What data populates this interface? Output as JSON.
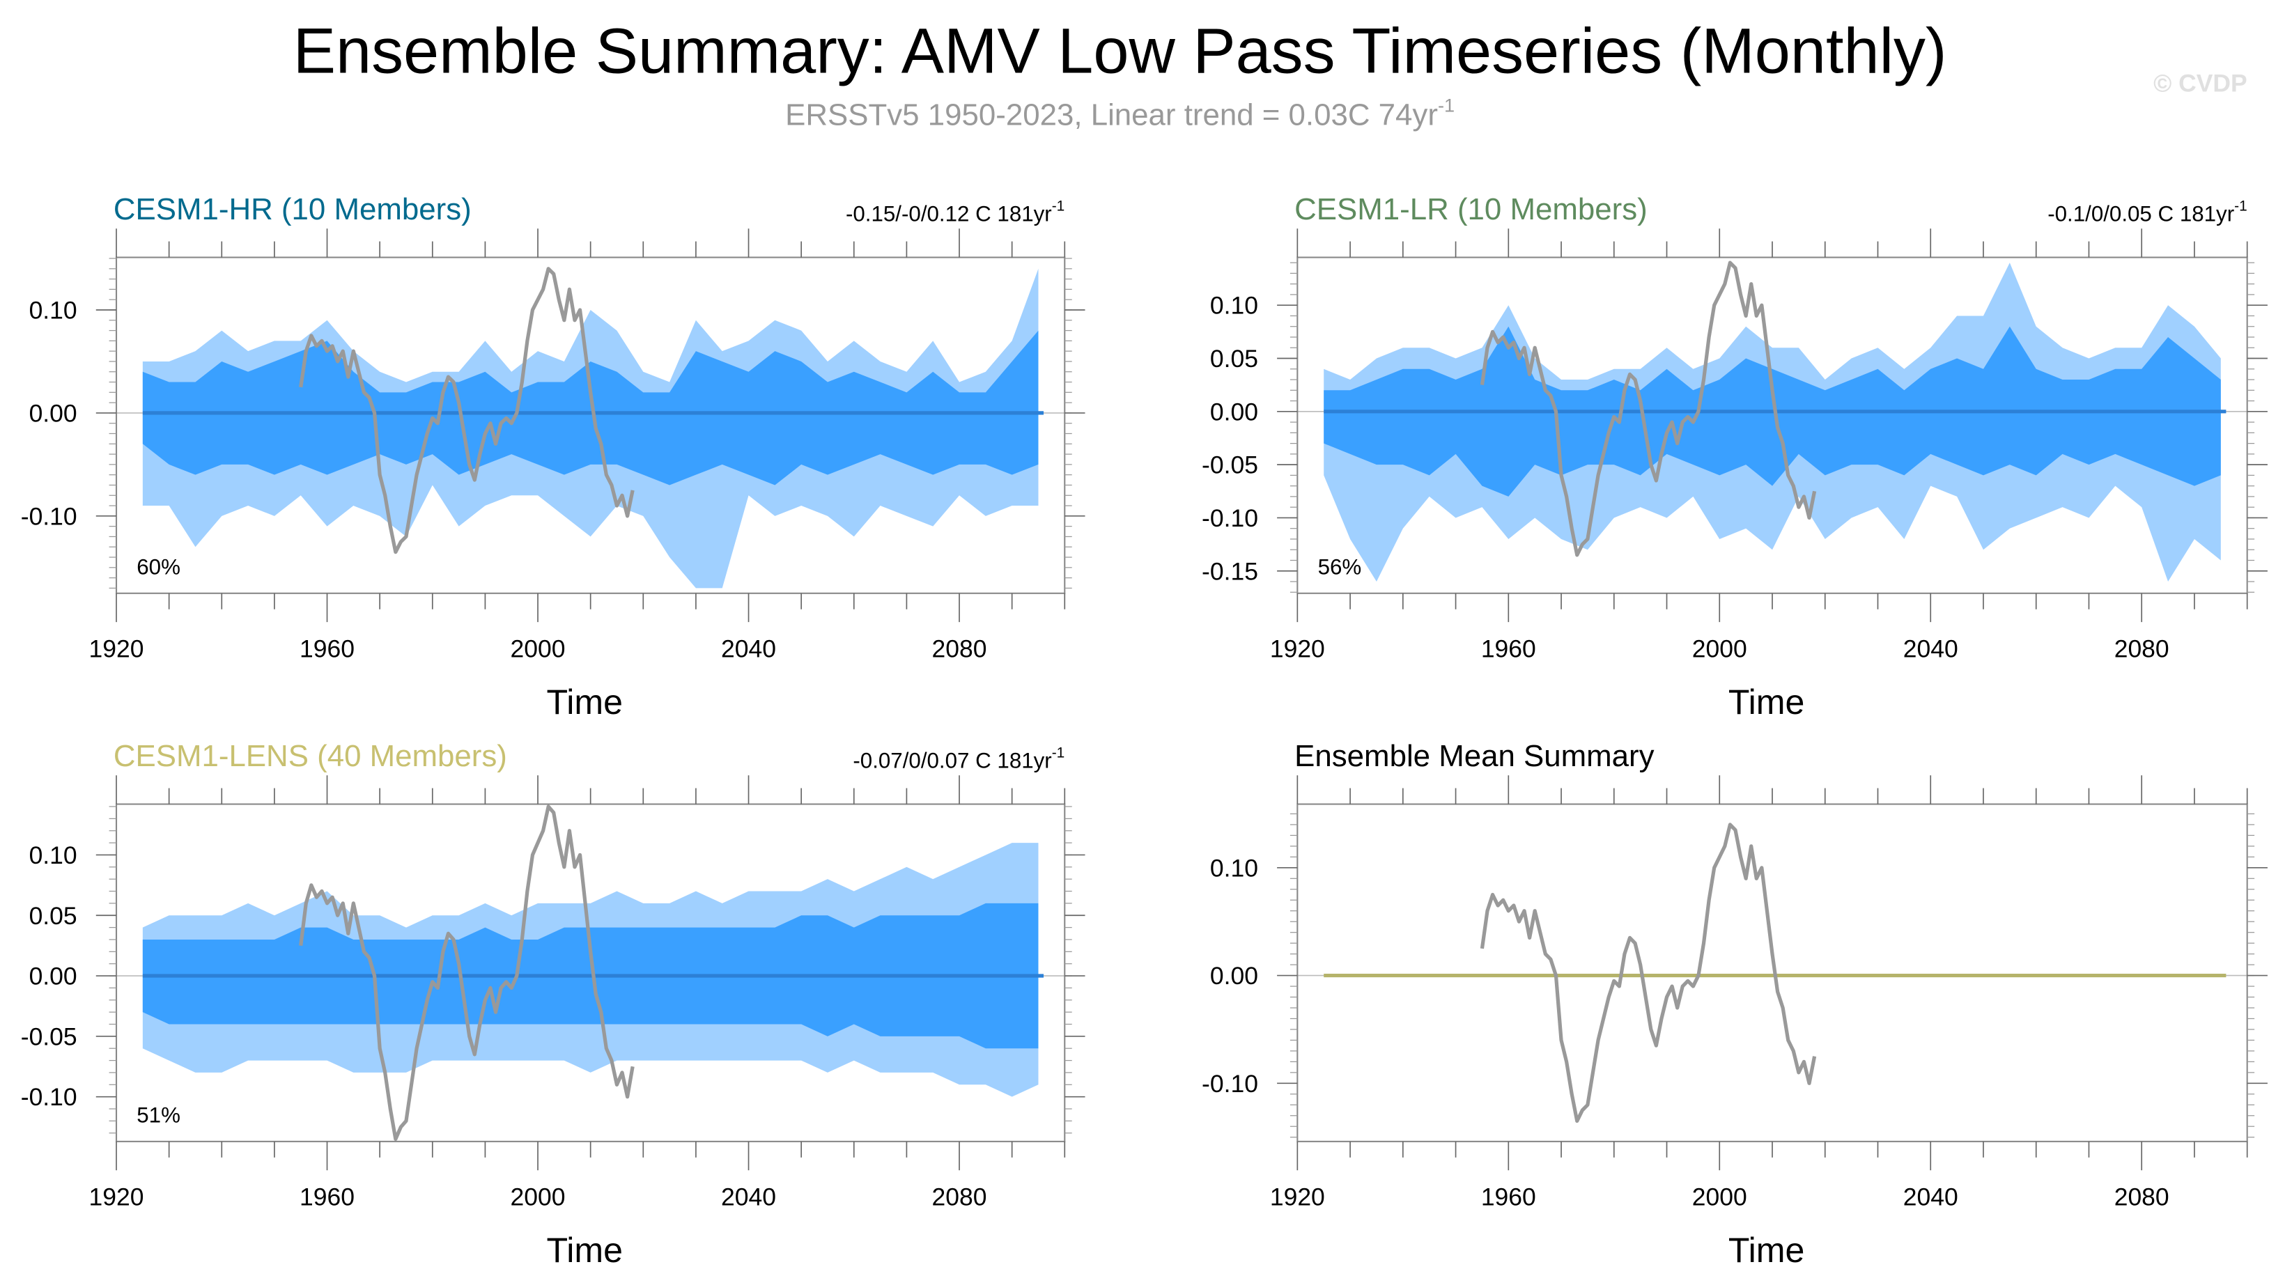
{
  "title": "Ensemble Summary: AMV Low Pass Timeseries (Monthly)",
  "subtitle": "ERSSTv5 1950-2023, Linear trend = 0.03C 74yr",
  "subtitle_sup": "-1",
  "watermark": "© CVDP",
  "colors": {
    "outer_band": "#a0d0ff",
    "inner_band": "#3aa0ff",
    "ensemble_mean": "#2c80d6",
    "observed": "#999999",
    "mean_summary_line": "#b5b36a"
  },
  "chart_data": [
    {
      "type": "area",
      "title": "CESM1-HR (10 Members)",
      "title_color": "#006a8e",
      "stat": "-0.15/-0/0.12 C 181yr",
      "stat_sup": "-1",
      "percent": "60%",
      "xlabel": "Time",
      "xlim": [
        1920,
        2100
      ],
      "ylim": [
        -0.175,
        0.151
      ],
      "xticks": [
        "1920",
        "1960",
        "2000",
        "2040",
        "2080"
      ],
      "yticks": [
        "0.10",
        "0.00",
        "-0.10"
      ],
      "years": [
        1925,
        1930,
        1935,
        1940,
        1945,
        1950,
        1955,
        1960,
        1965,
        1970,
        1975,
        1980,
        1985,
        1990,
        1995,
        2000,
        2005,
        2010,
        2015,
        2020,
        2025,
        2030,
        2035,
        2040,
        2045,
        2050,
        2055,
        2060,
        2065,
        2070,
        2075,
        2080,
        2085,
        2090,
        2095
      ],
      "outer_upper": [
        0.05,
        0.05,
        0.06,
        0.08,
        0.06,
        0.07,
        0.07,
        0.09,
        0.06,
        0.04,
        0.03,
        0.04,
        0.04,
        0.07,
        0.04,
        0.06,
        0.05,
        0.1,
        0.08,
        0.04,
        0.03,
        0.09,
        0.06,
        0.07,
        0.09,
        0.08,
        0.05,
        0.07,
        0.05,
        0.04,
        0.07,
        0.03,
        0.04,
        0.07,
        0.14
      ],
      "inner_upper": [
        0.04,
        0.03,
        0.03,
        0.05,
        0.04,
        0.05,
        0.06,
        0.07,
        0.04,
        0.02,
        0.02,
        0.03,
        0.03,
        0.04,
        0.02,
        0.03,
        0.03,
        0.05,
        0.04,
        0.02,
        0.02,
        0.06,
        0.05,
        0.04,
        0.06,
        0.05,
        0.03,
        0.04,
        0.03,
        0.02,
        0.04,
        0.02,
        0.02,
        0.05,
        0.08
      ],
      "inner_lower": [
        -0.03,
        -0.05,
        -0.06,
        -0.05,
        -0.05,
        -0.06,
        -0.05,
        -0.06,
        -0.05,
        -0.04,
        -0.05,
        -0.04,
        -0.06,
        -0.05,
        -0.04,
        -0.05,
        -0.06,
        -0.05,
        -0.05,
        -0.06,
        -0.07,
        -0.06,
        -0.05,
        -0.06,
        -0.07,
        -0.05,
        -0.06,
        -0.05,
        -0.04,
        -0.05,
        -0.06,
        -0.05,
        -0.05,
        -0.06,
        -0.05
      ],
      "outer_lower": [
        -0.09,
        -0.09,
        -0.13,
        -0.1,
        -0.09,
        -0.1,
        -0.08,
        -0.11,
        -0.09,
        -0.1,
        -0.12,
        -0.07,
        -0.11,
        -0.09,
        -0.08,
        -0.08,
        -0.1,
        -0.12,
        -0.09,
        -0.1,
        -0.14,
        -0.17,
        -0.17,
        -0.08,
        -0.1,
        -0.09,
        -0.1,
        -0.12,
        -0.09,
        -0.1,
        -0.11,
        -0.08,
        -0.1,
        -0.09,
        -0.09
      ],
      "mean_value": 0.0,
      "mean_range": [
        1925,
        2096
      ]
    },
    {
      "type": "area",
      "title": "CESM1-LR (10 Members)",
      "title_color": "#5e8b5e",
      "stat": "-0.1/0/0.05 C 181yr",
      "stat_sup": "-1",
      "percent": "56%",
      "xlabel": "Time",
      "xlim": [
        1920,
        2100
      ],
      "ylim": [
        -0.171,
        0.145
      ],
      "xticks": [
        "1920",
        "1960",
        "2000",
        "2040",
        "2080"
      ],
      "yticks": [
        "0.10",
        "0.05",
        "0.00",
        "-0.05",
        "-0.10",
        "-0.15"
      ],
      "years": [
        1925,
        1930,
        1935,
        1940,
        1945,
        1950,
        1955,
        1960,
        1965,
        1970,
        1975,
        1980,
        1985,
        1990,
        1995,
        2000,
        2005,
        2010,
        2015,
        2020,
        2025,
        2030,
        2035,
        2040,
        2045,
        2050,
        2055,
        2060,
        2065,
        2070,
        2075,
        2080,
        2085,
        2090,
        2095
      ],
      "outer_upper": [
        0.04,
        0.03,
        0.05,
        0.06,
        0.06,
        0.05,
        0.06,
        0.1,
        0.05,
        0.03,
        0.03,
        0.04,
        0.04,
        0.06,
        0.04,
        0.05,
        0.08,
        0.06,
        0.06,
        0.03,
        0.05,
        0.06,
        0.04,
        0.06,
        0.09,
        0.09,
        0.14,
        0.08,
        0.06,
        0.05,
        0.06,
        0.06,
        0.1,
        0.08,
        0.05
      ],
      "inner_upper": [
        0.02,
        0.02,
        0.03,
        0.04,
        0.04,
        0.03,
        0.04,
        0.08,
        0.03,
        0.02,
        0.02,
        0.03,
        0.02,
        0.04,
        0.02,
        0.03,
        0.05,
        0.04,
        0.03,
        0.02,
        0.03,
        0.04,
        0.02,
        0.04,
        0.05,
        0.04,
        0.08,
        0.04,
        0.03,
        0.03,
        0.04,
        0.04,
        0.07,
        0.05,
        0.03
      ],
      "inner_lower": [
        -0.03,
        -0.04,
        -0.05,
        -0.05,
        -0.06,
        -0.04,
        -0.07,
        -0.08,
        -0.05,
        -0.06,
        -0.05,
        -0.05,
        -0.06,
        -0.04,
        -0.05,
        -0.06,
        -0.05,
        -0.07,
        -0.04,
        -0.06,
        -0.05,
        -0.05,
        -0.06,
        -0.04,
        -0.05,
        -0.06,
        -0.05,
        -0.06,
        -0.04,
        -0.05,
        -0.04,
        -0.05,
        -0.06,
        -0.07,
        -0.06
      ],
      "outer_lower": [
        -0.06,
        -0.12,
        -0.16,
        -0.11,
        -0.08,
        -0.1,
        -0.09,
        -0.12,
        -0.1,
        -0.12,
        -0.13,
        -0.1,
        -0.09,
        -0.1,
        -0.08,
        -0.12,
        -0.11,
        -0.13,
        -0.08,
        -0.12,
        -0.1,
        -0.09,
        -0.12,
        -0.07,
        -0.08,
        -0.13,
        -0.11,
        -0.1,
        -0.09,
        -0.1,
        -0.07,
        -0.09,
        -0.16,
        -0.12,
        -0.14
      ],
      "mean_value": 0.0,
      "mean_range": [
        1925,
        2096
      ]
    },
    {
      "type": "area",
      "title": "CESM1-LENS (40 Members)",
      "title_color": "#c8c070",
      "stat": "-0.07/0/0.07 C 181yr",
      "stat_sup": "-1",
      "percent": "51%",
      "xlabel": "Time",
      "xlim": [
        1920,
        2100
      ],
      "ylim": [
        -0.137,
        0.142
      ],
      "xticks": [
        "1920",
        "1960",
        "2000",
        "2040",
        "2080"
      ],
      "yticks": [
        "0.10",
        "0.05",
        "0.00",
        "-0.05",
        "-0.10"
      ],
      "years": [
        1925,
        1930,
        1935,
        1940,
        1945,
        1950,
        1955,
        1960,
        1965,
        1970,
        1975,
        1980,
        1985,
        1990,
        1995,
        2000,
        2005,
        2010,
        2015,
        2020,
        2025,
        2030,
        2035,
        2040,
        2045,
        2050,
        2055,
        2060,
        2065,
        2070,
        2075,
        2080,
        2085,
        2090,
        2095
      ],
      "outer_upper": [
        0.04,
        0.05,
        0.05,
        0.05,
        0.06,
        0.05,
        0.06,
        0.07,
        0.05,
        0.05,
        0.04,
        0.05,
        0.05,
        0.06,
        0.05,
        0.06,
        0.06,
        0.06,
        0.07,
        0.06,
        0.06,
        0.07,
        0.06,
        0.07,
        0.07,
        0.07,
        0.08,
        0.07,
        0.08,
        0.09,
        0.08,
        0.09,
        0.1,
        0.11,
        0.11
      ],
      "inner_upper": [
        0.03,
        0.03,
        0.03,
        0.03,
        0.03,
        0.03,
        0.04,
        0.04,
        0.03,
        0.03,
        0.03,
        0.03,
        0.03,
        0.04,
        0.03,
        0.03,
        0.04,
        0.04,
        0.04,
        0.04,
        0.04,
        0.04,
        0.04,
        0.04,
        0.04,
        0.05,
        0.05,
        0.04,
        0.05,
        0.05,
        0.05,
        0.05,
        0.06,
        0.06,
        0.06
      ],
      "inner_lower": [
        -0.03,
        -0.04,
        -0.04,
        -0.04,
        -0.04,
        -0.04,
        -0.04,
        -0.04,
        -0.04,
        -0.04,
        -0.04,
        -0.04,
        -0.04,
        -0.04,
        -0.04,
        -0.04,
        -0.04,
        -0.04,
        -0.04,
        -0.04,
        -0.04,
        -0.04,
        -0.04,
        -0.04,
        -0.04,
        -0.04,
        -0.05,
        -0.04,
        -0.05,
        -0.05,
        -0.05,
        -0.05,
        -0.06,
        -0.06,
        -0.06
      ],
      "outer_lower": [
        -0.06,
        -0.07,
        -0.08,
        -0.08,
        -0.07,
        -0.07,
        -0.07,
        -0.07,
        -0.08,
        -0.08,
        -0.08,
        -0.07,
        -0.07,
        -0.07,
        -0.07,
        -0.07,
        -0.07,
        -0.08,
        -0.07,
        -0.07,
        -0.07,
        -0.07,
        -0.07,
        -0.07,
        -0.07,
        -0.07,
        -0.08,
        -0.07,
        -0.08,
        -0.08,
        -0.08,
        -0.09,
        -0.09,
        -0.1,
        -0.09
      ],
      "mean_value": 0.0,
      "mean_range": [
        1925,
        2096
      ]
    },
    {
      "type": "line",
      "title": "Ensemble Mean Summary",
      "title_color": "#000000",
      "xlabel": "Time",
      "xlim": [
        1920,
        2100
      ],
      "ylim": [
        -0.154,
        0.159
      ],
      "xticks": [
        "1920",
        "1960",
        "2000",
        "2040",
        "2080"
      ],
      "yticks": [
        "0.10",
        "0.00",
        "-0.10"
      ],
      "mean_value": 0.0,
      "mean_range": [
        1925,
        2096
      ]
    }
  ],
  "observed": {
    "years": [
      1955,
      1956,
      1957,
      1958,
      1959,
      1960,
      1961,
      1962,
      1963,
      1964,
      1965,
      1966,
      1967,
      1968,
      1969,
      1970,
      1971,
      1972,
      1973,
      1974,
      1975,
      1976,
      1977,
      1978,
      1979,
      1980,
      1981,
      1982,
      1983,
      1984,
      1985,
      1986,
      1987,
      1988,
      1989,
      1990,
      1991,
      1992,
      1993,
      1994,
      1995,
      1996,
      1997,
      1998,
      1999,
      2000,
      2001,
      2002,
      2003,
      2004,
      2005,
      2006,
      2007,
      2008,
      2009,
      2010,
      2011,
      2012,
      2013,
      2014,
      2015,
      2016,
      2017,
      2018
    ],
    "values": [
      0.025,
      0.06,
      0.075,
      0.065,
      0.07,
      0.06,
      0.065,
      0.05,
      0.06,
      0.035,
      0.06,
      0.04,
      0.02,
      0.015,
      0.0,
      -0.06,
      -0.08,
      -0.11,
      -0.135,
      -0.125,
      -0.12,
      -0.09,
      -0.06,
      -0.04,
      -0.02,
      -0.005,
      -0.01,
      0.02,
      0.035,
      0.03,
      0.01,
      -0.02,
      -0.05,
      -0.065,
      -0.04,
      -0.02,
      -0.01,
      -0.03,
      -0.01,
      -0.005,
      -0.01,
      0.0,
      0.03,
      0.07,
      0.1,
      0.11,
      0.12,
      0.14,
      0.135,
      0.11,
      0.09,
      0.12,
      0.09,
      0.1,
      0.06,
      0.02,
      -0.015,
      -0.03,
      -0.06,
      -0.07,
      -0.09,
      -0.08,
      -0.1,
      -0.075
    ]
  }
}
